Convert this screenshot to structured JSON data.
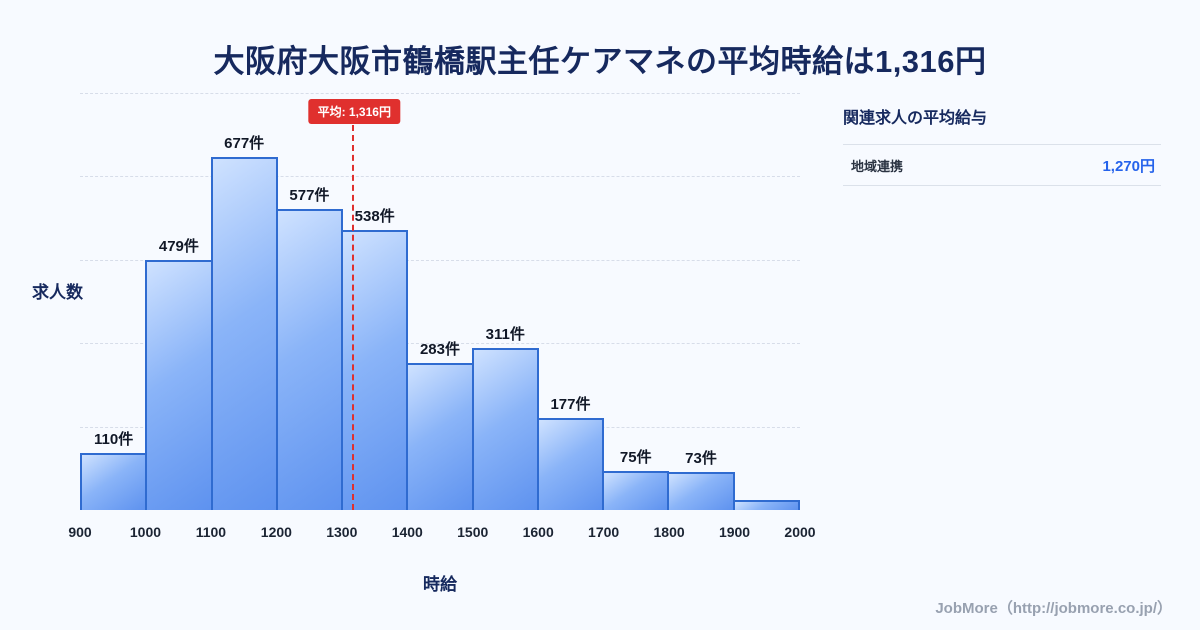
{
  "page": {
    "title": "大阪府大阪市鶴橋駅主任ケアマネの平均時給は1,316円",
    "footer": "JobMore（http://jobmore.co.jp/）"
  },
  "chart_data": {
    "type": "bar",
    "title": "大阪府大阪市鶴橋駅主任ケアマネの平均時給は1,316円",
    "xlabel": "時給",
    "ylabel": "求人数",
    "xlim": [
      900,
      2000
    ],
    "ylim": [
      0,
      800
    ],
    "x_ticks": [
      900,
      1000,
      1100,
      1200,
      1300,
      1400,
      1500,
      1600,
      1700,
      1800,
      1900,
      2000
    ],
    "bin_width": 100,
    "values": [
      110,
      479,
      677,
      577,
      538,
      283,
      311,
      177,
      75,
      73,
      20
    ],
    "labels": [
      "110件",
      "479件",
      "677件",
      "577件",
      "538件",
      "283件",
      "311件",
      "177件",
      "75件",
      "73件",
      ""
    ],
    "average_value": 1316,
    "average_label": "平均: 1,316円",
    "grid": "horizontal-dashed",
    "legend": "none"
  },
  "side_panel": {
    "heading": "関連求人の平均給与",
    "rows": [
      {
        "label": "地域連携",
        "value": "1,270円"
      }
    ]
  },
  "colors": {
    "background": "#f7faff",
    "title": "#16295e",
    "bar_border": "#2f6bd0",
    "bar_fill_light": "#cfe2ff",
    "bar_fill_dark": "#5e92ef",
    "average_line": "#e0302e",
    "value_accent": "#2563eb"
  }
}
